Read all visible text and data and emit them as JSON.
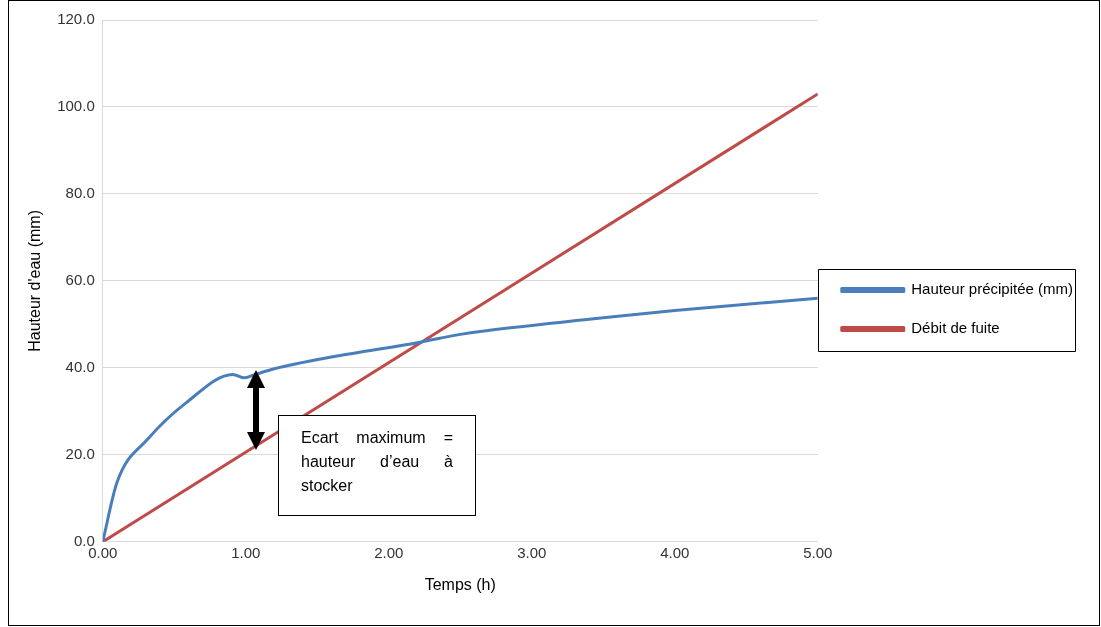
{
  "chart_data": {
    "type": "line",
    "xlabel": "Temps (h)",
    "ylabel": "Hauteur d'eau (mm)",
    "xlim": [
      0,
      5
    ],
    "xticks": [
      {
        "value": 0,
        "label": "0.00"
      },
      {
        "value": 1,
        "label": "1.00"
      },
      {
        "value": 2,
        "label": "2.00"
      },
      {
        "value": 3,
        "label": "3.00"
      },
      {
        "value": 4,
        "label": "4.00"
      },
      {
        "value": 5,
        "label": "5.00"
      }
    ],
    "ylim": [
      0,
      120
    ],
    "yticks": [
      {
        "value": 0,
        "label": "0.0"
      },
      {
        "value": 20,
        "label": "20.0"
      },
      {
        "value": 40,
        "label": "40.0"
      },
      {
        "value": 60,
        "label": "60.0"
      },
      {
        "value": 80,
        "label": "80.0"
      },
      {
        "value": 100,
        "label": "100.0"
      },
      {
        "value": 120,
        "label": "120.0"
      }
    ],
    "grid": "y",
    "legend": "right",
    "marker": "none",
    "line_style": "solid",
    "series": [
      {
        "name": "Hauteur précipitée (mm)",
        "color": "#4a7ebb",
        "x": [
          0,
          0.1,
          0.32,
          0.58,
          0.91,
          0.99,
          1.05,
          1.2,
          1.6,
          2.22,
          2.5,
          3.5,
          4,
          5
        ],
        "values": [
          0,
          13.7,
          23.8,
          31.9,
          38.5,
          37.7,
          38.3,
          39.8,
          42.5,
          45.9,
          47.7,
          51.5,
          53.2,
          56
        ]
      },
      {
        "name": "Débit de fuite",
        "color": "#be4b48",
        "x": [
          0,
          5
        ],
        "values": [
          0,
          103
        ]
      }
    ],
    "annotations": [
      "Ecart maximum = hauteur d’eau à stocker"
    ]
  }
}
